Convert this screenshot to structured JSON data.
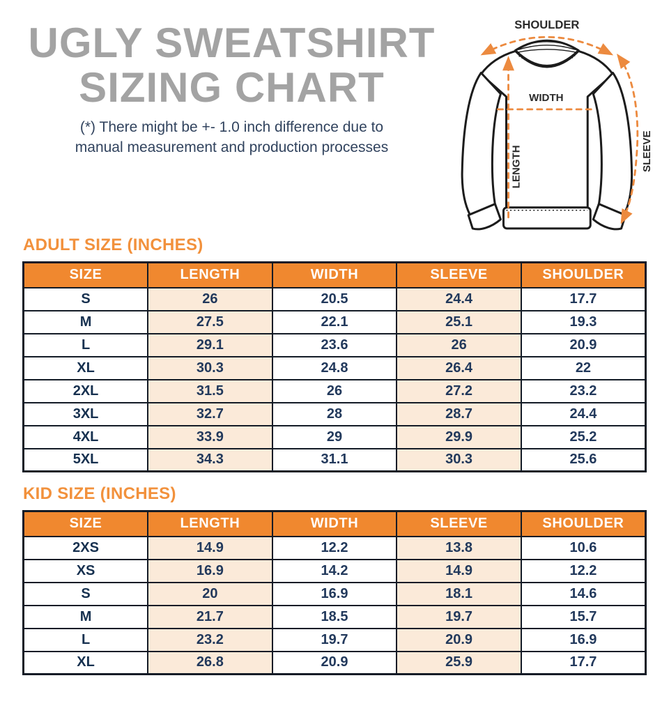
{
  "title": {
    "line1": "UGLY SWEATSHIRT",
    "line2": "SIZING CHART"
  },
  "subtitle": {
    "line1": "(*) There might be +- 1.0 inch difference due to",
    "line2": "manual measurement and production processes"
  },
  "diagram": {
    "labels": {
      "shoulder": "SHOULDER",
      "width": "WIDTH",
      "length": "LENGTH",
      "sleeve": "SLEEVE"
    }
  },
  "adult_table": {
    "heading": "ADULT SIZE (INCHES)",
    "columns": [
      "SIZE",
      "LENGTH",
      "WIDTH",
      "SLEEVE",
      "SHOULDER"
    ],
    "rows": [
      [
        "S",
        "26",
        "20.5",
        "24.4",
        "17.7"
      ],
      [
        "M",
        "27.5",
        "22.1",
        "25.1",
        "19.3"
      ],
      [
        "L",
        "29.1",
        "23.6",
        "26",
        "20.9"
      ],
      [
        "XL",
        "30.3",
        "24.8",
        "26.4",
        "22"
      ],
      [
        "2XL",
        "31.5",
        "26",
        "27.2",
        "23.2"
      ],
      [
        "3XL",
        "32.7",
        "28",
        "28.7",
        "24.4"
      ],
      [
        "4XL",
        "33.9",
        "29",
        "29.9",
        "25.2"
      ],
      [
        "5XL",
        "34.3",
        "31.1",
        "30.3",
        "25.6"
      ]
    ]
  },
  "kid_table": {
    "heading": "KID SIZE (INCHES)",
    "columns": [
      "SIZE",
      "LENGTH",
      "WIDTH",
      "SLEEVE",
      "SHOULDER"
    ],
    "rows": [
      [
        "2XS",
        "14.9",
        "12.2",
        "13.8",
        "10.6"
      ],
      [
        "XS",
        "16.9",
        "14.2",
        "14.9",
        "12.2"
      ],
      [
        "S",
        "20",
        "16.9",
        "18.1",
        "14.6"
      ],
      [
        "M",
        "21.7",
        "18.5",
        "19.7",
        "15.7"
      ],
      [
        "L",
        "23.2",
        "19.7",
        "20.9",
        "16.9"
      ],
      [
        "XL",
        "26.8",
        "20.9",
        "25.9",
        "17.7"
      ]
    ]
  },
  "colors": {
    "header_orange": "#f0882f",
    "heading_orange": "#f2913c",
    "peach_cell": "#fbead9",
    "navy_text": "#22395c",
    "title_gray": "#a3a3a3",
    "border_dark": "#131b26",
    "dash_orange": "#ec8a3f"
  }
}
